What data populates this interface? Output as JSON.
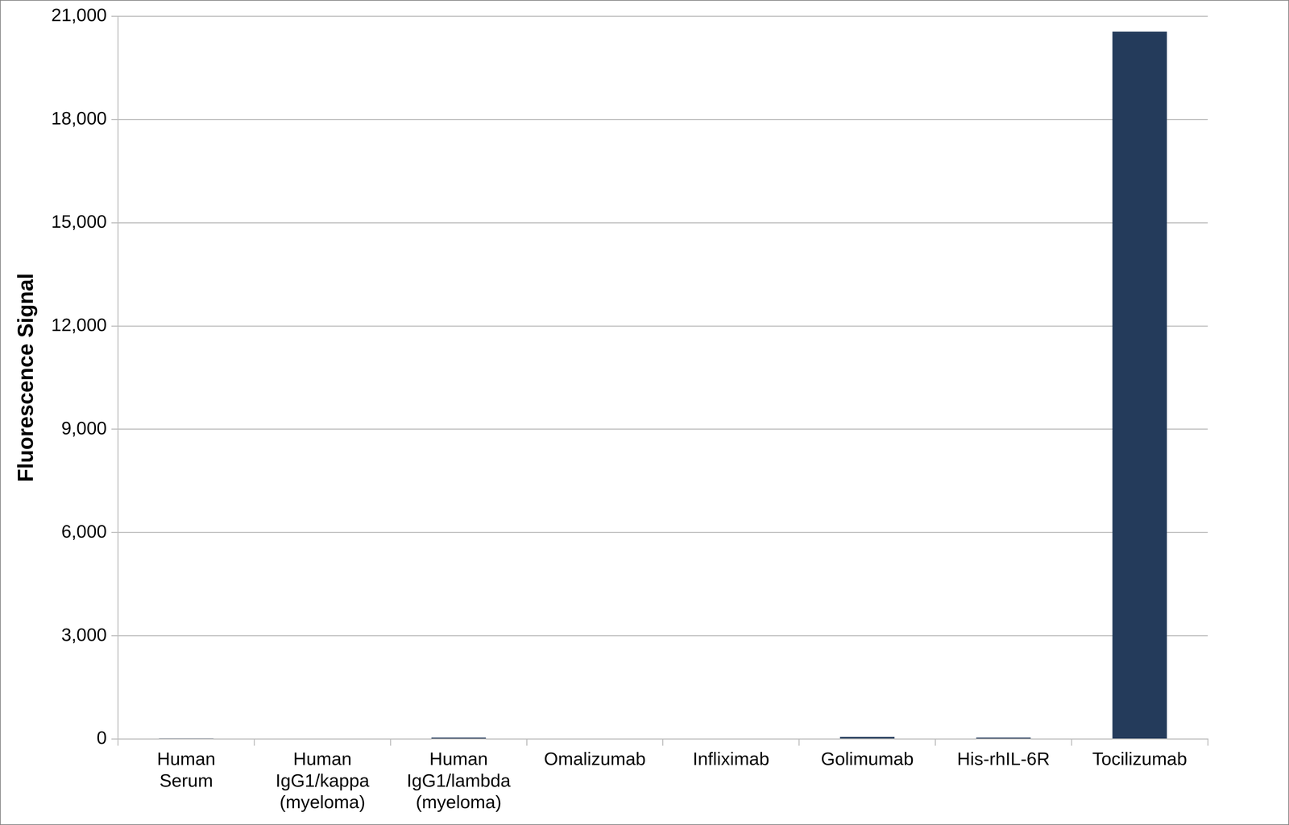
{
  "chart_data": {
    "type": "bar",
    "y_label": "Fluorescence Signal",
    "categories": [
      "Human\nSerum",
      "Human\nIgG1/kappa\n(myeloma)",
      "Human\nIgG1/lambda\n(myeloma)",
      "Omalizumab",
      "Infliximab",
      "Golimumab",
      "His-rhIL-6R",
      "Tocilizumab"
    ],
    "values": [
      20,
      15,
      40,
      15,
      15,
      60,
      40,
      20550
    ],
    "color": "#243b5b",
    "ylim": [
      0,
      21000
    ],
    "yticks": [
      0,
      {
        "value": 3000,
        "label": "3,000"
      },
      {
        "value": 6000,
        "label": "6,000"
      },
      {
        "value": 9000,
        "label": "9,000"
      },
      {
        "value": 12000,
        "label": "12,000"
      },
      {
        "value": 15000,
        "label": "15,000"
      },
      {
        "value": 18000,
        "label": "18,000"
      },
      {
        "value": 21000,
        "label": "21,000"
      }
    ],
    "grid": true
  }
}
